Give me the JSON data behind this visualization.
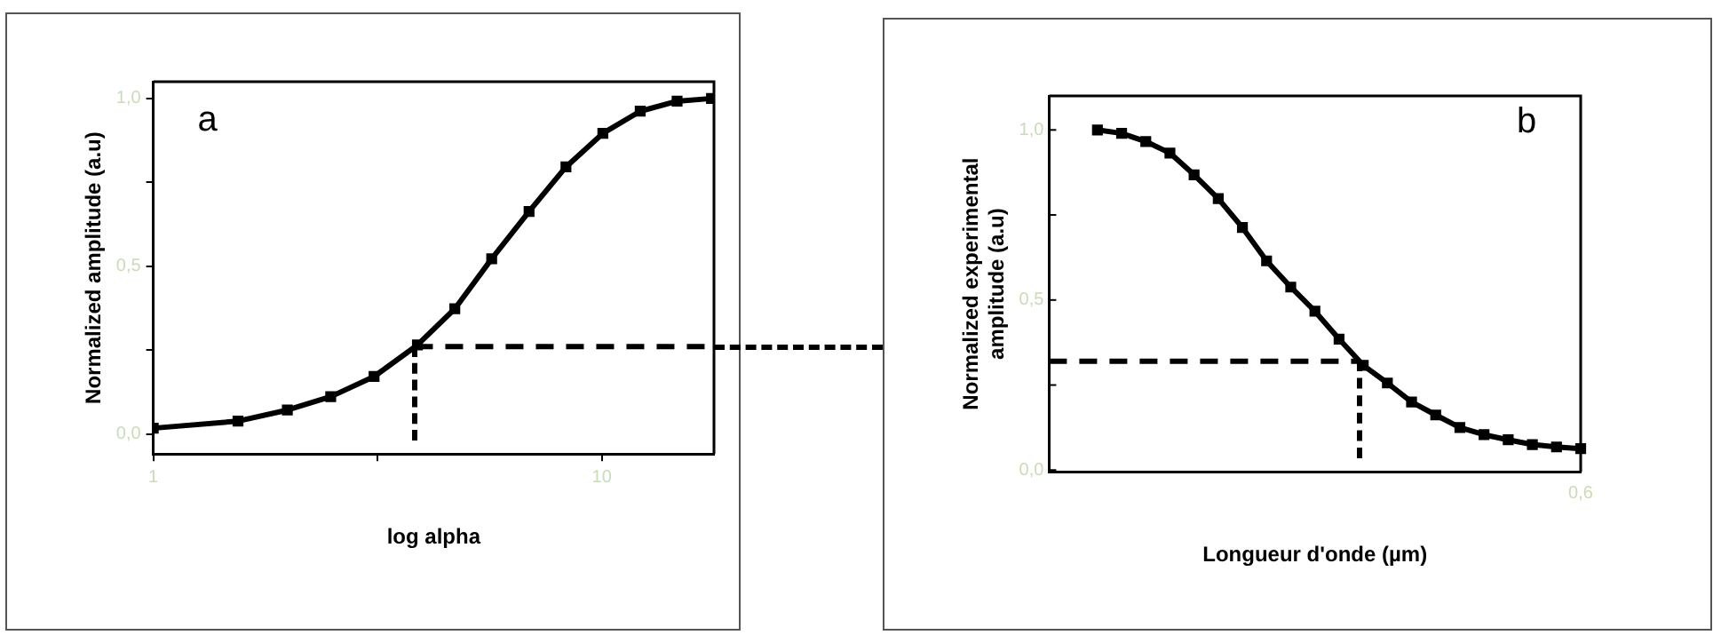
{
  "chart_data": [
    {
      "type": "line",
      "xlabel": "log alpha",
      "ylabel": "Normalized amplitude (a.u)",
      "annotations": [
        "a"
      ],
      "x": [
        1,
        2.7,
        3.69,
        4.56,
        5.43,
        6.3,
        7.05,
        7.79,
        8.54,
        9.28,
        10.02,
        10.77,
        11.51,
        12.2
      ],
      "series": [
        {
          "color": "#000000",
          "values": [
            0.017,
            0.038,
            0.071,
            0.111,
            0.171,
            0.265,
            0.373,
            0.522,
            0.663,
            0.796,
            0.896,
            0.962,
            0.992,
            1.0
          ]
        }
      ],
      "xlim": [
        1,
        12.25
      ],
      "xticks": [
        1,
        {
          "value": 5.5,
          "label": null
        },
        10
      ],
      "ylim": [
        -0.06,
        1.05
      ],
      "yticks": [
        {
          "value": 0,
          "label": "0,0"
        },
        {
          "value": 0.25,
          "label": null
        },
        {
          "value": 0.5,
          "label": "0,5"
        },
        {
          "value": 0.75,
          "label": null
        },
        {
          "value": 1,
          "label": "1,0"
        }
      ],
      "ref_lines": [
        {
          "axis": "y",
          "value": 0.26,
          "line_style": "dashed",
          "color": "#000000"
        }
      ],
      "grid": false,
      "legend": false,
      "marker": "square",
      "line_style": "solid"
    },
    {
      "type": "line",
      "xlabel": "Longueur d'onde (µm)",
      "ylabel": "Normalized experimental amplitude (a.u)",
      "annotations": [
        "b",
        "0,6"
      ],
      "categories": [
        null,
        null,
        null,
        null,
        null,
        null,
        null,
        null,
        null,
        null,
        null,
        null,
        null,
        null,
        null,
        null,
        null,
        null,
        null,
        null,
        null,
        null,
        null
      ],
      "series": [
        {
          "color": "#000000",
          "values": [
            null,
            null,
            1.0,
            0.99,
            0.966,
            0.932,
            0.868,
            0.798,
            0.713,
            0.615,
            0.538,
            0.467,
            0.385,
            0.308,
            0.256,
            0.2,
            0.162,
            0.125,
            0.104,
            0.089,
            0.075,
            0.068,
            0.063
          ]
        }
      ],
      "ylim": [
        -0.005,
        1.1
      ],
      "yticks": [
        {
          "value": 0,
          "label": "0,0"
        },
        {
          "value": 0.25,
          "label": null
        },
        {
          "value": 0.5,
          "label": "0,5"
        },
        {
          "value": 0.75,
          "label": null
        },
        {
          "value": 1,
          "label": "1,0"
        }
      ],
      "ref_lines": [
        {
          "axis": "y",
          "value": 0.32,
          "line_style": "dashed",
          "color": "#000000"
        }
      ],
      "grid": false,
      "legend": false,
      "marker": "square",
      "line_style": "solid"
    }
  ]
}
